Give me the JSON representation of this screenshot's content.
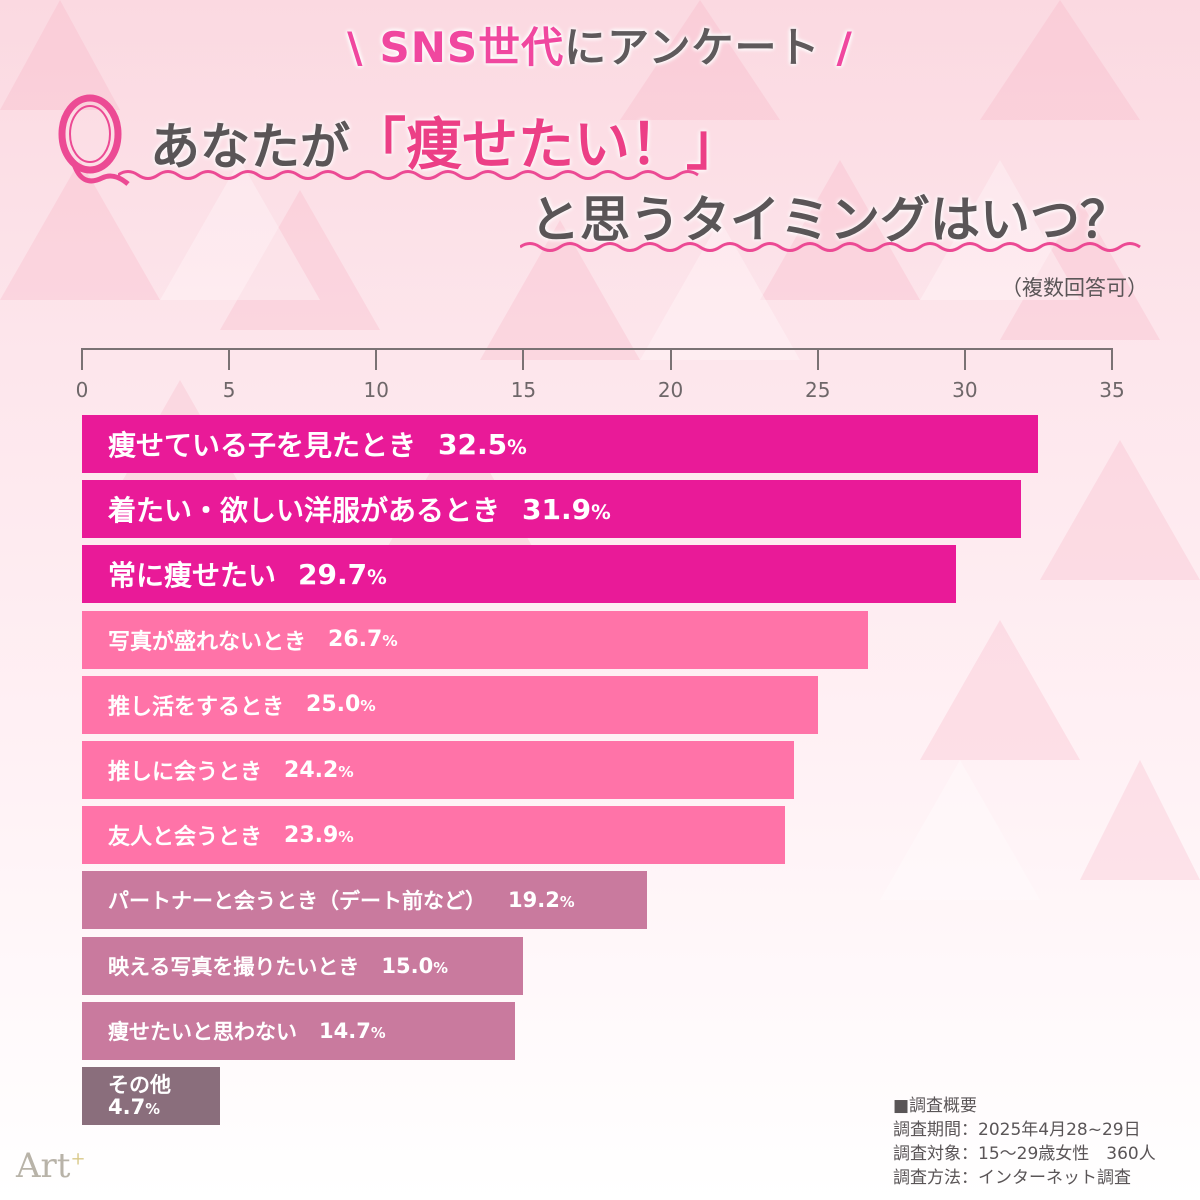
{
  "header": {
    "kicker_pink": "SNS世代",
    "kicker_gray": "にアンケート",
    "slash_left": "\\",
    "slash_right": "/",
    "q_line1_pre": "あなたが",
    "q_line1_highlight": "「痩せたい！」",
    "q_line2": "と思うタイミングはいつ？",
    "note": "（複数回答可）"
  },
  "colors": {
    "top": "#e91a98",
    "mid": "#ff73a8",
    "low": "#c97a9e",
    "other": "#8a6e7c",
    "accent_pink": "#f0479f",
    "text_gray": "#5a5557"
  },
  "chart_data": {
    "type": "bar",
    "orientation": "horizontal",
    "title": "あなたが「痩せたい！」と思うタイミングはいつ？",
    "subtitle": "（複数回答可）",
    "xlabel": "",
    "ylabel": "",
    "xlim": [
      0,
      35
    ],
    "ticks": [
      0,
      5,
      10,
      15,
      20,
      25,
      30,
      35
    ],
    "grid": false,
    "unit": "%",
    "categories": [
      "痩せている子を見たとき",
      "着たい・欲しい洋服があるとき",
      "常に痩せたい",
      "写真が盛れないとき",
      "推し活をするとき",
      "推しに会うとき",
      "友人と会うとき",
      "パートナーと会うとき（デート前など）",
      "映える写真を撮りたいとき",
      "痩せたいと思わない",
      "その他"
    ],
    "values": [
      32.5,
      31.9,
      29.7,
      26.7,
      25.0,
      24.2,
      23.9,
      19.2,
      15.0,
      14.7,
      4.7
    ],
    "value_labels": [
      "32.5",
      "31.9",
      "29.7",
      "26.7",
      "25.0",
      "24.2",
      "23.9",
      "19.2",
      "15.0",
      "14.7",
      "4.7"
    ]
  },
  "footer": {
    "heading": "■調査概要",
    "period": "調査期間：2025年4月28~29日",
    "target": "調査対象：15〜29歳女性　360人",
    "method": "調査方法：インターネット調査"
  },
  "logo": {
    "text": "Art",
    "sup": "+"
  }
}
